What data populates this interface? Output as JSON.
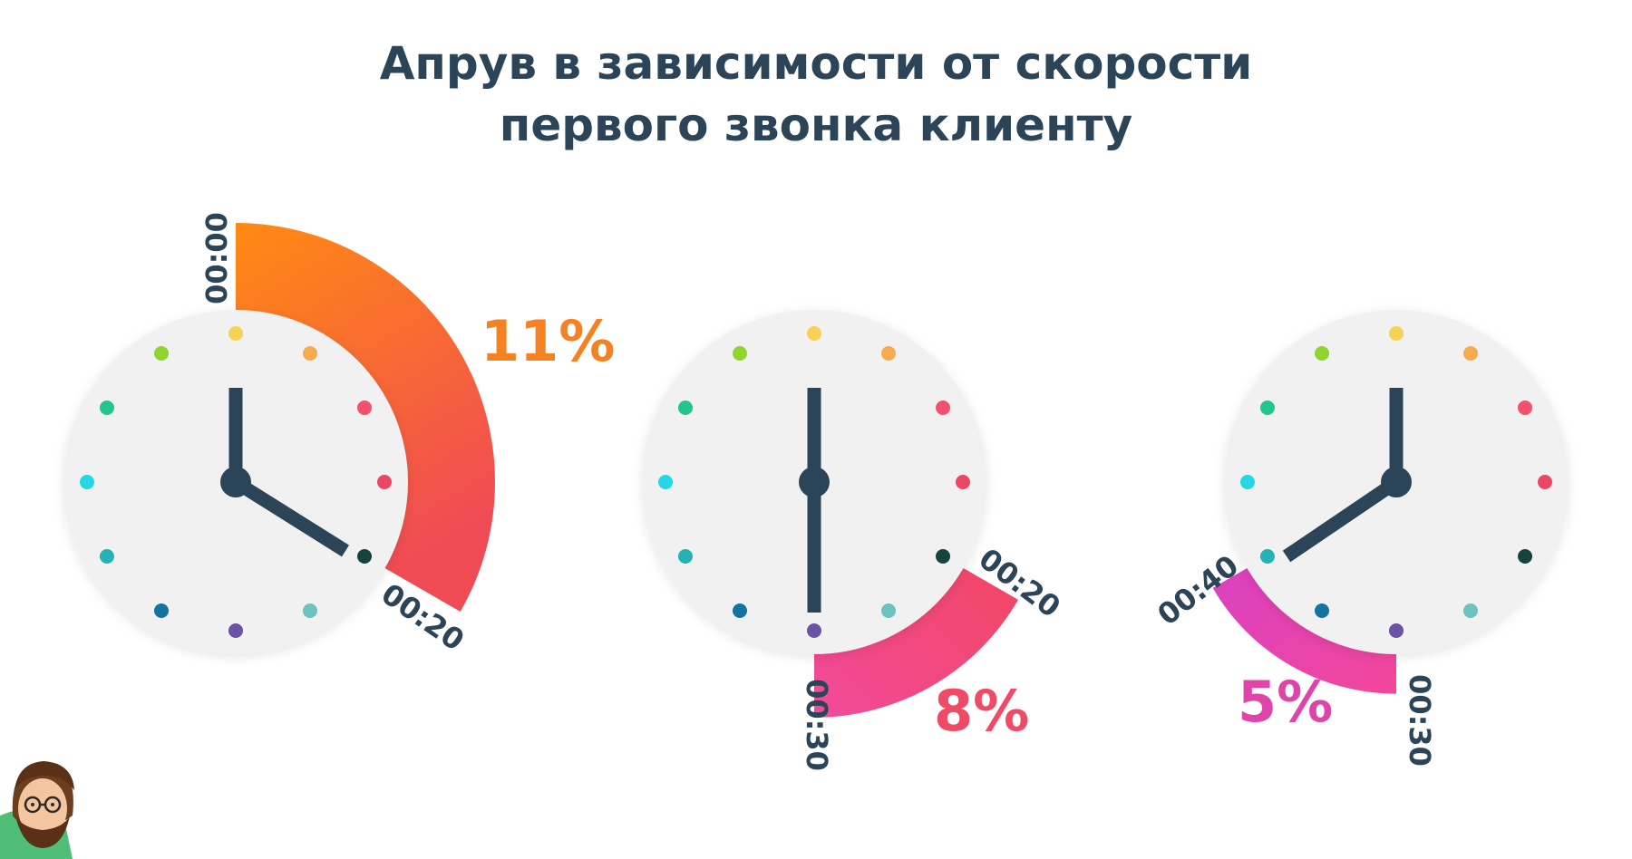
{
  "title": {
    "line1": "Апрув в зависимости от скорости",
    "line2": "первого звонка клиенту"
  },
  "chart_data": {
    "type": "clock-gauge",
    "title": "Апрув в зависимости от скорости первого звонка клиенту",
    "unit": "%",
    "items": [
      {
        "start_label": "00:00",
        "end_label": "00:20",
        "value": 11,
        "value_label": "11%",
        "color_start": "#ff8a12",
        "color_end": "#f04a55"
      },
      {
        "start_label": "00:20",
        "end_label": "00:30",
        "value": 8,
        "value_label": "8%",
        "color_start": "#f2465a",
        "color_end": "#f24a9b"
      },
      {
        "start_label": "00:30",
        "end_label": "00:40",
        "value": 5,
        "value_label": "5%",
        "color_start": "#f4479a",
        "color_end": "#d53fc8"
      }
    ]
  },
  "colors": {
    "text": "#2b4457",
    "clock_face": "#f1f1f1",
    "hands": "#2b4457",
    "pct_colors": [
      "#f58220",
      "#ef4a66",
      "#df45a8"
    ],
    "dots": [
      "#f7d154",
      "#f5ab4e",
      "#f0526b",
      "#ea4763",
      "#15433f",
      "#6cc2bd",
      "#6c52a5",
      "#1573a2",
      "#25b2b5",
      "#25d7e4",
      "#25c48c",
      "#8fd42f"
    ]
  },
  "icons": {
    "mascot": "bearded-man-avatar-icon"
  }
}
